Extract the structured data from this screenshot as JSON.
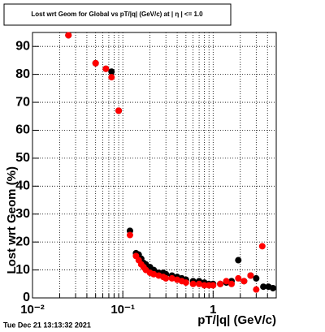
{
  "chart_data": {
    "type": "scatter",
    "title": "Lost wrt Geom for Global vs pT/|q| (GeV/c) at | η | <= 1.0",
    "x_label": "pT/|q| (GeV/c)",
    "y_label": "Lost wrt Geom (%)",
    "footer": "Tue Dec 21 13:13:32 2021",
    "x_log": true,
    "grid": true,
    "xlim": [
      0.01,
      5
    ],
    "ylim": [
      0,
      95
    ],
    "xticks": [
      {
        "value": 0.01,
        "label": "10⁻²"
      },
      {
        "value": 0.1,
        "label": "10⁻¹"
      },
      1
    ],
    "xminor_ticks": [
      0.02,
      0.03,
      0.04,
      0.05,
      0.06,
      0.07,
      0.08,
      0.09,
      0.2,
      0.3,
      0.4,
      0.5,
      0.6,
      0.7,
      0.8,
      0.9,
      2,
      3,
      4
    ],
    "yticks": [
      0,
      10,
      20,
      30,
      40,
      50,
      60,
      70,
      80,
      90
    ],
    "series": [
      {
        "color": "#000000",
        "x": [
          0.025,
          0.05,
          0.065,
          0.075,
          0.09,
          0.12,
          0.14,
          0.15,
          0.16,
          0.17,
          0.18,
          0.2,
          0.22,
          0.25,
          0.28,
          0.3,
          0.35,
          0.4,
          0.45,
          0.5,
          0.6,
          0.7,
          0.8,
          0.9,
          1.0,
          1.2,
          1.4,
          1.6,
          1.9,
          2.2,
          2.6,
          3.0,
          3.6,
          4.1,
          4.6
        ],
        "values": [
          94,
          84,
          82,
          81,
          67,
          24,
          16,
          15.5,
          14,
          12.5,
          12,
          11,
          10,
          9,
          9,
          8.5,
          8,
          7.5,
          7,
          6.5,
          6,
          6,
          5.5,
          5,
          5,
          5,
          5.5,
          6,
          13.5,
          6,
          8,
          7,
          4,
          4,
          3.5
        ]
      },
      {
        "color": "#ff0000",
        "x": [
          0.025,
          0.05,
          0.065,
          0.075,
          0.09,
          0.12,
          0.14,
          0.15,
          0.16,
          0.17,
          0.18,
          0.2,
          0.22,
          0.25,
          0.28,
          0.3,
          0.35,
          0.4,
          0.45,
          0.5,
          0.6,
          0.7,
          0.8,
          0.9,
          1.0,
          1.2,
          1.4,
          1.6,
          1.9,
          2.2,
          2.6,
          3.0,
          3.5
        ],
        "values": [
          94,
          84,
          82,
          79,
          67,
          22.5,
          15,
          13.5,
          12,
          11,
          10,
          9,
          8.5,
          8,
          7.5,
          7,
          7,
          6.5,
          6,
          5.5,
          5,
          5,
          4.5,
          4.5,
          4.5,
          5,
          6,
          5,
          7,
          6,
          8,
          3,
          18.5
        ]
      }
    ]
  }
}
